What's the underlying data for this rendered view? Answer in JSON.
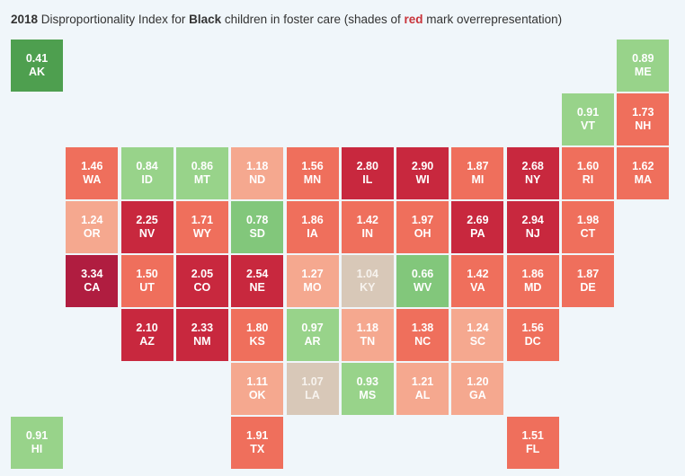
{
  "title": {
    "year": "2018",
    "pre": " Disproportionality Index for ",
    "group": "Black",
    "mid": " children in foster care (shades of ",
    "color_word": "red",
    "post": " mark overrepresentation)"
  },
  "colors": {
    "under_strong": "#4e9f4f",
    "under": "#82c77b",
    "under_light": "#98d38a",
    "neutral": "#d8c8b8",
    "over_light": "#f5a88f",
    "over": "#ef6f5c",
    "over_strong": "#c8283e",
    "over_max": "#b01d40"
  },
  "chart_data": {
    "type": "heatmap",
    "title": "2018 Disproportionality Index for Black children in foster care (shades of red mark overrepresentation)",
    "states": [
      {
        "abbr": "AK",
        "value": 0.41,
        "row": 0,
        "col": 0
      },
      {
        "abbr": "ME",
        "value": 0.89,
        "row": 0,
        "col": 11
      },
      {
        "abbr": "VT",
        "value": 0.91,
        "row": 1,
        "col": 10
      },
      {
        "abbr": "NH",
        "value": 1.73,
        "row": 1,
        "col": 11
      },
      {
        "abbr": "WA",
        "value": 1.46,
        "row": 2,
        "col": 1
      },
      {
        "abbr": "ID",
        "value": 0.84,
        "row": 2,
        "col": 2
      },
      {
        "abbr": "MT",
        "value": 0.86,
        "row": 2,
        "col": 3
      },
      {
        "abbr": "ND",
        "value": 1.18,
        "row": 2,
        "col": 4
      },
      {
        "abbr": "MN",
        "value": 1.56,
        "row": 2,
        "col": 5
      },
      {
        "abbr": "IL",
        "value": 2.8,
        "row": 2,
        "col": 6
      },
      {
        "abbr": "WI",
        "value": 2.9,
        "row": 2,
        "col": 7
      },
      {
        "abbr": "MI",
        "value": 1.87,
        "row": 2,
        "col": 8
      },
      {
        "abbr": "NY",
        "value": 2.68,
        "row": 2,
        "col": 9
      },
      {
        "abbr": "RI",
        "value": 1.6,
        "row": 2,
        "col": 10
      },
      {
        "abbr": "MA",
        "value": 1.62,
        "row": 2,
        "col": 11
      },
      {
        "abbr": "OR",
        "value": 1.24,
        "row": 3,
        "col": 1
      },
      {
        "abbr": "NV",
        "value": 2.25,
        "row": 3,
        "col": 2
      },
      {
        "abbr": "WY",
        "value": 1.71,
        "row": 3,
        "col": 3
      },
      {
        "abbr": "SD",
        "value": 0.78,
        "row": 3,
        "col": 4
      },
      {
        "abbr": "IA",
        "value": 1.86,
        "row": 3,
        "col": 5
      },
      {
        "abbr": "IN",
        "value": 1.42,
        "row": 3,
        "col": 6
      },
      {
        "abbr": "OH",
        "value": 1.97,
        "row": 3,
        "col": 7
      },
      {
        "abbr": "PA",
        "value": 2.69,
        "row": 3,
        "col": 8
      },
      {
        "abbr": "NJ",
        "value": 2.94,
        "row": 3,
        "col": 9
      },
      {
        "abbr": "CT",
        "value": 1.98,
        "row": 3,
        "col": 10
      },
      {
        "abbr": "CA",
        "value": 3.34,
        "row": 4,
        "col": 1
      },
      {
        "abbr": "UT",
        "value": 1.5,
        "row": 4,
        "col": 2
      },
      {
        "abbr": "CO",
        "value": 2.05,
        "row": 4,
        "col": 3
      },
      {
        "abbr": "NE",
        "value": 2.54,
        "row": 4,
        "col": 4
      },
      {
        "abbr": "MO",
        "value": 1.27,
        "row": 4,
        "col": 5
      },
      {
        "abbr": "KY",
        "value": 1.04,
        "row": 4,
        "col": 6
      },
      {
        "abbr": "WV",
        "value": 0.66,
        "row": 4,
        "col": 7
      },
      {
        "abbr": "VA",
        "value": 1.42,
        "row": 4,
        "col": 8
      },
      {
        "abbr": "MD",
        "value": 1.86,
        "row": 4,
        "col": 9
      },
      {
        "abbr": "DE",
        "value": 1.87,
        "row": 4,
        "col": 10
      },
      {
        "abbr": "AZ",
        "value": 2.1,
        "row": 5,
        "col": 2
      },
      {
        "abbr": "NM",
        "value": 2.33,
        "row": 5,
        "col": 3
      },
      {
        "abbr": "KS",
        "value": 1.8,
        "row": 5,
        "col": 4
      },
      {
        "abbr": "AR",
        "value": 0.97,
        "row": 5,
        "col": 5
      },
      {
        "abbr": "TN",
        "value": 1.18,
        "row": 5,
        "col": 6
      },
      {
        "abbr": "NC",
        "value": 1.38,
        "row": 5,
        "col": 7
      },
      {
        "abbr": "SC",
        "value": 1.24,
        "row": 5,
        "col": 8
      },
      {
        "abbr": "DC",
        "value": 1.56,
        "row": 5,
        "col": 9
      },
      {
        "abbr": "OK",
        "value": 1.11,
        "row": 6,
        "col": 4
      },
      {
        "abbr": "LA",
        "value": 1.07,
        "row": 6,
        "col": 5
      },
      {
        "abbr": "MS",
        "value": 0.93,
        "row": 6,
        "col": 6
      },
      {
        "abbr": "AL",
        "value": 1.21,
        "row": 6,
        "col": 7
      },
      {
        "abbr": "GA",
        "value": 1.2,
        "row": 6,
        "col": 8
      },
      {
        "abbr": "HI",
        "value": 0.91,
        "row": 7,
        "col": 0
      },
      {
        "abbr": "TX",
        "value": 1.91,
        "row": 7,
        "col": 4
      },
      {
        "abbr": "FL",
        "value": 1.51,
        "row": 7,
        "col": 9
      }
    ]
  }
}
